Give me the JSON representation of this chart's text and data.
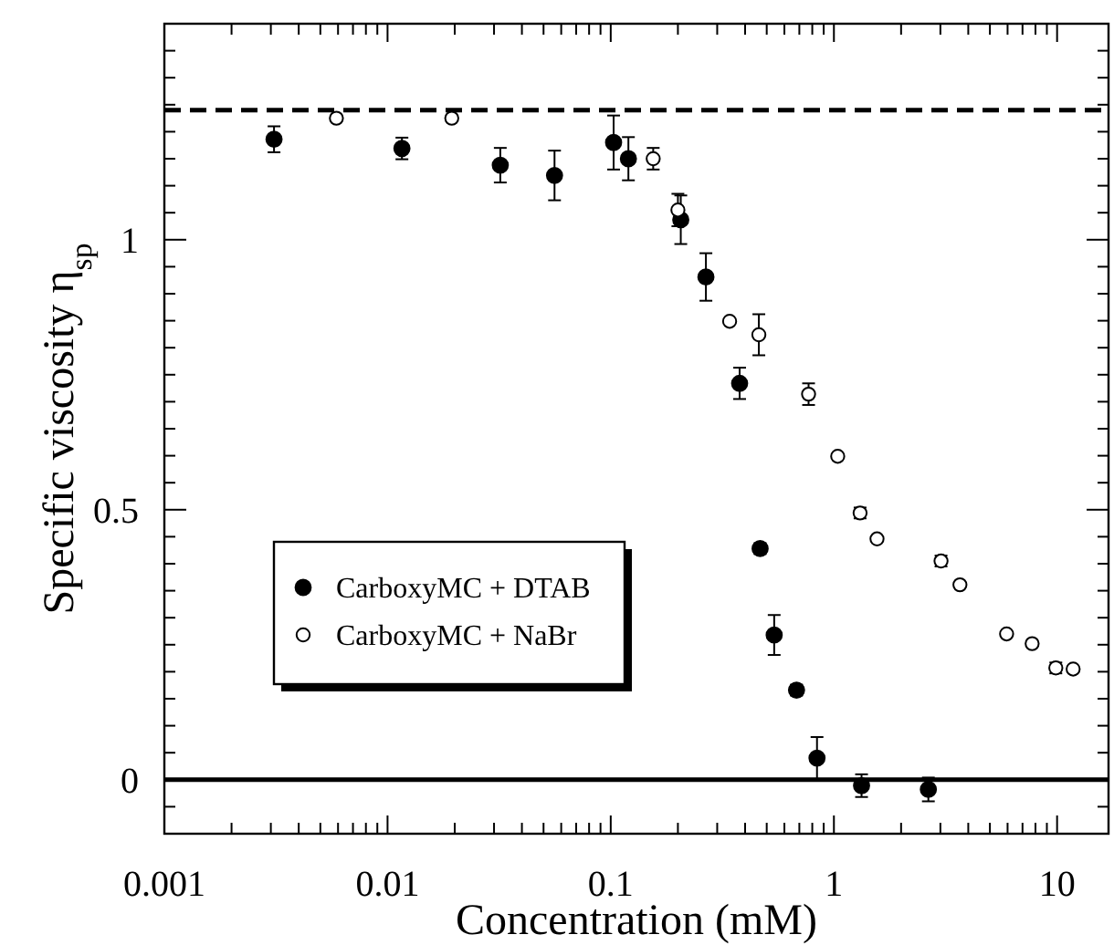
{
  "chart_data": {
    "type": "scatter",
    "xlabel": "Concentration (mM)",
    "ylabel": "Specific viscosity η$_{sp}$",
    "log": "x",
    "xlim": [
      0.001,
      17
    ],
    "ylim": [
      -0.1,
      1.4
    ],
    "xticks": [
      0.001,
      {
        "value": 0.002,
        "label": null
      },
      {
        "value": 0.003,
        "label": null
      },
      {
        "value": 0.004,
        "label": null
      },
      {
        "value": 0.005,
        "label": null
      },
      {
        "value": 0.006,
        "label": null
      },
      {
        "value": 0.007,
        "label": null
      },
      {
        "value": 0.008,
        "label": null
      },
      {
        "value": 0.009,
        "label": null
      },
      0.01,
      {
        "value": 0.02,
        "label": null
      },
      {
        "value": 0.03,
        "label": null
      },
      {
        "value": 0.04,
        "label": null
      },
      {
        "value": 0.05,
        "label": null
      },
      {
        "value": 0.06,
        "label": null
      },
      {
        "value": 0.07,
        "label": null
      },
      {
        "value": 0.08,
        "label": null
      },
      {
        "value": 0.09,
        "label": null
      },
      0.1,
      {
        "value": 0.2,
        "label": null
      },
      {
        "value": 0.3,
        "label": null
      },
      {
        "value": 0.4,
        "label": null
      },
      {
        "value": 0.5,
        "label": null
      },
      {
        "value": 0.6,
        "label": null
      },
      {
        "value": 0.7,
        "label": null
      },
      {
        "value": 0.8,
        "label": null
      },
      {
        "value": 0.9,
        "label": null
      },
      1,
      {
        "value": 2,
        "label": null
      },
      {
        "value": 3,
        "label": null
      },
      {
        "value": 4,
        "label": null
      },
      {
        "value": 5,
        "label": null
      },
      {
        "value": 6,
        "label": null
      },
      {
        "value": 7,
        "label": null
      },
      {
        "value": 8,
        "label": null
      },
      {
        "value": 9,
        "label": null
      },
      10
    ],
    "yticks": [
      {
        "value": -0.05,
        "label": null
      },
      0,
      {
        "value": 0.05,
        "label": null
      },
      {
        "value": 0.1,
        "label": null
      },
      {
        "value": 0.15,
        "label": null
      },
      {
        "value": 0.2,
        "label": null
      },
      {
        "value": 0.25,
        "label": null
      },
      {
        "value": 0.3,
        "label": null
      },
      {
        "value": 0.35,
        "label": null
      },
      {
        "value": 0.4,
        "label": null
      },
      {
        "value": 0.45,
        "label": null
      },
      0.5,
      {
        "value": 0.55,
        "label": null
      },
      {
        "value": 0.6,
        "label": null
      },
      {
        "value": 0.65,
        "label": null
      },
      {
        "value": 0.7,
        "label": null
      },
      {
        "value": 0.75,
        "label": null
      },
      {
        "value": 0.8,
        "label": null
      },
      {
        "value": 0.85,
        "label": null
      },
      {
        "value": 0.9,
        "label": null
      },
      {
        "value": 0.95,
        "label": null
      },
      1,
      {
        "value": 1.05,
        "label": null
      },
      {
        "value": 1.1,
        "label": null
      },
      {
        "value": 1.15,
        "label": null
      },
      {
        "value": 1.2,
        "label": null
      },
      {
        "value": 1.25,
        "label": null
      },
      {
        "value": 1.3,
        "label": null
      },
      {
        "value": 1.35,
        "label": null
      }
    ],
    "grid": false,
    "legend": "left",
    "marker": "circle",
    "ref_lines": [
      {
        "axis": "y",
        "value": 1.24,
        "line_style": "dashed",
        "color": "#000000"
      },
      {
        "axis": "y",
        "value": 0,
        "line_style": "solid",
        "color": "#000000"
      }
    ],
    "series": [
      {
        "name": "CarboxyMC + DTAB",
        "color": "#000000",
        "x": [
          0.0031,
          0.0116,
          0.032,
          0.056,
          0.103,
          0.12,
          0.206,
          0.267,
          0.378,
          0.467,
          0.54,
          0.68,
          0.84,
          1.33,
          2.65
        ],
        "values": [
          1.186,
          1.169,
          1.138,
          1.119,
          1.18,
          1.15,
          1.037,
          0.931,
          0.734,
          0.428,
          0.268,
          0.166,
          0.04,
          -0.011,
          -0.018
        ],
        "errors": [
          0.024,
          0.02,
          0.032,
          0.046,
          0.05,
          0.04,
          0.045,
          0.044,
          0.029,
          0.01,
          0.037,
          0.01,
          0.039,
          0.021,
          0.022
        ]
      },
      {
        "name": "CarboxyMC + NaBr",
        "color": "#ffffff",
        "x": [
          0.0059,
          0.0194,
          0.155,
          0.2,
          0.341,
          0.461,
          0.77,
          1.04,
          1.31,
          1.56,
          3.02,
          3.67,
          5.94,
          7.73,
          9.87,
          11.8
        ],
        "values": [
          1.225,
          1.225,
          1.15,
          1.055,
          0.849,
          0.824,
          0.714,
          0.599,
          0.494,
          0.446,
          0.405,
          0.361,
          0.27,
          0.252,
          0.207,
          0.205
        ],
        "errors": [
          null,
          null,
          0.02,
          0.03,
          null,
          0.038,
          0.02,
          null,
          0.01,
          null,
          0.01,
          null,
          null,
          null,
          0.01,
          null
        ]
      }
    ]
  }
}
